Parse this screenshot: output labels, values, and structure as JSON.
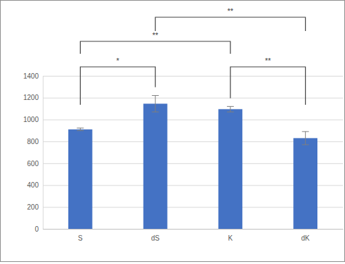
{
  "chart_data": {
    "type": "bar",
    "categories": [
      "S",
      "dS",
      "K",
      "dK"
    ],
    "values": [
      910,
      1145,
      1095,
      830
    ],
    "errors": [
      12,
      75,
      25,
      60
    ],
    "color": "#4472c4",
    "ylim": [
      0,
      1400
    ],
    "yticks": [
      0,
      200,
      400,
      600,
      800,
      1000,
      1200,
      1400
    ],
    "grid": true,
    "annotations": [
      {
        "from": "S",
        "to": "dS",
        "label": "*"
      },
      {
        "from": "K",
        "to": "dK",
        "label": "**"
      },
      {
        "from": "S",
        "to": "K",
        "label": "**"
      },
      {
        "from": "dS",
        "to": "dK",
        "label": "**"
      }
    ]
  }
}
